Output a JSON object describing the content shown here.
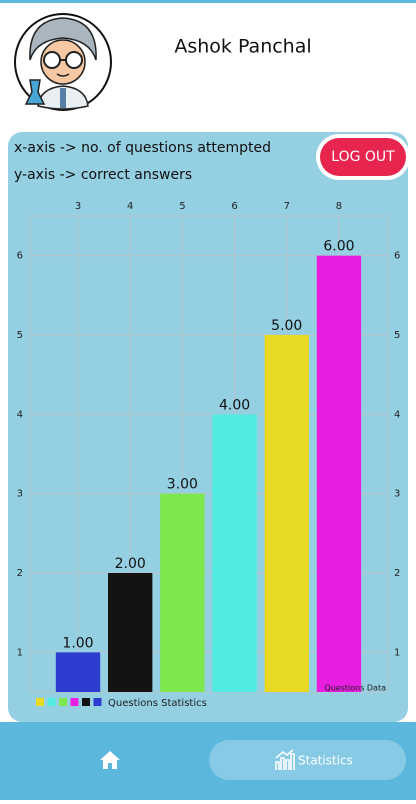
{
  "header": {
    "name": "Ashok Panchal",
    "logout": "LOG OUT"
  },
  "chart_data": {
    "type": "bar",
    "notes": [
      "x-axis -> no. of questions attempted",
      "y-axis -> correct answers"
    ],
    "x": [
      3,
      4,
      5,
      6,
      7,
      8
    ],
    "values": [
      1,
      2,
      3,
      4,
      5,
      6
    ],
    "value_labels": [
      "1.00",
      "2.00",
      "3.00",
      "4.00",
      "5.00",
      "6.00"
    ],
    "colors": [
      "#2c3dd0",
      "#141212",
      "#7ce84c",
      "#50ebe1",
      "#e8d923",
      "#e81fe0"
    ],
    "xlim": [
      2.08,
      8.94
    ],
    "xticks": [
      3,
      4,
      5,
      6,
      7,
      8
    ],
    "ylim": [
      0.5,
      6.5
    ],
    "yticks": [
      1,
      2,
      3,
      4,
      5,
      6
    ],
    "grid": true,
    "legend": {
      "label": "Questions Statistics",
      "colors": [
        "#e8d923",
        "#50ebe1",
        "#7ce84c",
        "#e81fe0",
        "#141212",
        "#2c3dd0"
      ]
    },
    "description": "Questions Data"
  },
  "nav": {
    "statistics": "Statistics"
  }
}
